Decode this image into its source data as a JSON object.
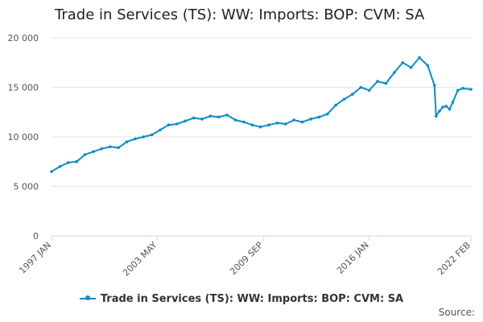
{
  "colors": {
    "series": "#0f8cc4",
    "grid": "#e6e6e6",
    "axis": "#ccd6eb",
    "text": "#555555"
  },
  "legend_icon": "line-with-dot-icon",
  "source_label": "Source:",
  "chart_data": {
    "type": "line",
    "title": "Trade in Services (TS): WW: Imports: BOP: CVM: SA",
    "xlabel": "",
    "ylabel": "",
    "ylim": [
      0,
      20000
    ],
    "yticks": [
      {
        "value": 0,
        "label": "0"
      },
      {
        "value": 5000,
        "label": "5 000"
      },
      {
        "value": 10000,
        "label": "10 000"
      },
      {
        "value": 15000,
        "label": "15 000"
      },
      {
        "value": 20000,
        "label": "20 000"
      }
    ],
    "xlim": [
      1997.0,
      2022.083
    ],
    "xticks": [
      {
        "value": 1997.0,
        "label": "1997 JAN"
      },
      {
        "value": 2003.333,
        "label": "2003 MAY"
      },
      {
        "value": 2009.667,
        "label": "2009 SEP"
      },
      {
        "value": 2016.0,
        "label": "2016 JAN"
      },
      {
        "value": 2022.083,
        "label": "2022 FEB"
      }
    ],
    "legend_position": "bottom",
    "series": [
      {
        "name": "Trade in Services (TS): WW: Imports: BOP: CVM: SA",
        "x": [
          1997.0,
          1997.5,
          1998.0,
          1998.5,
          1999.0,
          1999.5,
          2000.0,
          2000.5,
          2001.0,
          2001.5,
          2002.0,
          2002.5,
          2003.0,
          2003.5,
          2004.0,
          2004.5,
          2005.0,
          2005.5,
          2006.0,
          2006.5,
          2007.0,
          2007.5,
          2008.0,
          2008.5,
          2009.0,
          2009.5,
          2010.0,
          2010.5,
          2011.0,
          2011.5,
          2012.0,
          2012.5,
          2013.0,
          2013.5,
          2014.0,
          2014.5,
          2015.0,
          2015.5,
          2016.0,
          2016.5,
          2017.0,
          2017.5,
          2018.0,
          2018.5,
          2019.0,
          2019.5,
          2019.9,
          2020.0,
          2020.2,
          2020.4,
          2020.6,
          2020.8,
          2021.0,
          2021.3,
          2021.6,
          2022.083
        ],
        "y": [
          6500,
          7000,
          7400,
          7500,
          8200,
          8500,
          8800,
          9000,
          8900,
          9500,
          9800,
          10000,
          10200,
          10700,
          11200,
          11300,
          11600,
          11900,
          11800,
          12100,
          12000,
          12200,
          11700,
          11500,
          11200,
          11000,
          11200,
          11400,
          11300,
          11700,
          11500,
          11800,
          12000,
          12300,
          13200,
          13800,
          14300,
          15000,
          14700,
          15600,
          15400,
          16500,
          17500,
          17000,
          18000,
          17200,
          15200,
          12100,
          12600,
          13000,
          13100,
          12800,
          13500,
          14700,
          14900,
          14800
        ]
      }
    ]
  }
}
